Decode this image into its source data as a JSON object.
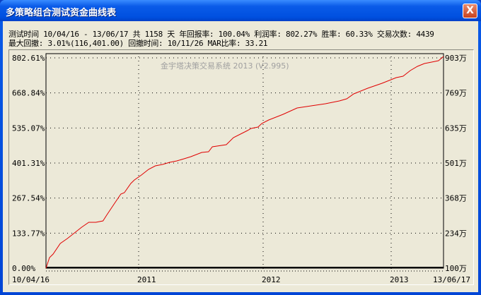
{
  "window": {
    "title": "多策略组合测试资金曲线表",
    "close_label": "X"
  },
  "stats": {
    "line1": "测试时间 10/04/16 - 13/06/17 共 1158 天 年回报率: 100.04% 利润率: 802.27% 胜率: 60.33% 交易次数: 4439",
    "line2": "最大回撤: 3.01%(116,401.00) 回撤时间: 10/11/26 MAR比率: 33.21"
  },
  "chart_data": {
    "type": "line",
    "watermark": "金宇塔决策交易系统 2013 (V2.995)",
    "line_color": "#e00000",
    "grid": true,
    "ylim": [
      0,
      802.61
    ],
    "y_ticks": [
      "802.61%",
      "668.84%",
      "535.07%",
      "401.31%",
      "267.54%",
      "133.77%",
      "0.00%"
    ],
    "y2_ticks": [
      "903万",
      "769万",
      "635万",
      "501万",
      "368万",
      "234万",
      "100万"
    ],
    "x_ticks": [
      {
        "label": "10/04/16",
        "date": "2010-04-16"
      },
      {
        "label": "2011",
        "date": "2011-01-01"
      },
      {
        "label": "2012",
        "date": "2012-01-01"
      },
      {
        "label": "2013",
        "date": "2013-01-01"
      },
      {
        "label": "13/06/17",
        "date": "2013-06-17"
      }
    ],
    "series": [
      {
        "points": [
          [
            "2010-04-16",
            0
          ],
          [
            "2010-04-26",
            40.1
          ],
          [
            "2010-05-06",
            53.5
          ],
          [
            "2010-05-26",
            93.6
          ],
          [
            "2010-06-15",
            112.4
          ],
          [
            "2010-07-05",
            133.8
          ],
          [
            "2010-07-25",
            155.2
          ],
          [
            "2010-08-14",
            173.9
          ],
          [
            "2010-09-03",
            173.9
          ],
          [
            "2010-09-23",
            179.3
          ],
          [
            "2010-10-03",
            200.7
          ],
          [
            "2010-10-23",
            240.8
          ],
          [
            "2010-11-12",
            280.9
          ],
          [
            "2010-11-22",
            286.3
          ],
          [
            "2010-12-10",
            321.0
          ],
          [
            "2010-12-20",
            334.4
          ],
          [
            "2011-01-09",
            353.2
          ],
          [
            "2011-01-30",
            374.6
          ],
          [
            "2011-02-19",
            387.9
          ],
          [
            "2011-03-12",
            393.3
          ],
          [
            "2011-04-02",
            401.3
          ],
          [
            "2011-04-23",
            406.7
          ],
          [
            "2011-05-14",
            414.7
          ],
          [
            "2011-06-03",
            422.8
          ],
          [
            "2011-07-05",
            438.8
          ],
          [
            "2011-07-25",
            441.4
          ],
          [
            "2011-08-05",
            460.2
          ],
          [
            "2011-09-15",
            468.2
          ],
          [
            "2011-10-06",
            494.9
          ],
          [
            "2011-11-16",
            521.7
          ],
          [
            "2011-11-27",
            529.7
          ],
          [
            "2011-12-17",
            535.1
          ],
          [
            "2011-12-28",
            548.5
          ],
          [
            "2012-01-17",
            561.8
          ],
          [
            "2012-02-27",
            583.2
          ],
          [
            "2012-04-07",
            607.3
          ],
          [
            "2012-05-17",
            615.3
          ],
          [
            "2012-06-27",
            623.4
          ],
          [
            "2012-08-06",
            634.1
          ],
          [
            "2012-08-27",
            642.1
          ],
          [
            "2012-09-16",
            660.8
          ],
          [
            "2012-10-26",
            682.2
          ],
          [
            "2012-12-06",
            701.0
          ],
          [
            "2013-01-17",
            722.4
          ],
          [
            "2013-02-08",
            727.7
          ],
          [
            "2013-03-03",
            749.1
          ],
          [
            "2013-03-26",
            765.2
          ],
          [
            "2013-04-17",
            775.9
          ],
          [
            "2013-05-10",
            781.2
          ],
          [
            "2013-06-01",
            786.6
          ],
          [
            "2013-06-17",
            802.6
          ]
        ]
      }
    ]
  }
}
